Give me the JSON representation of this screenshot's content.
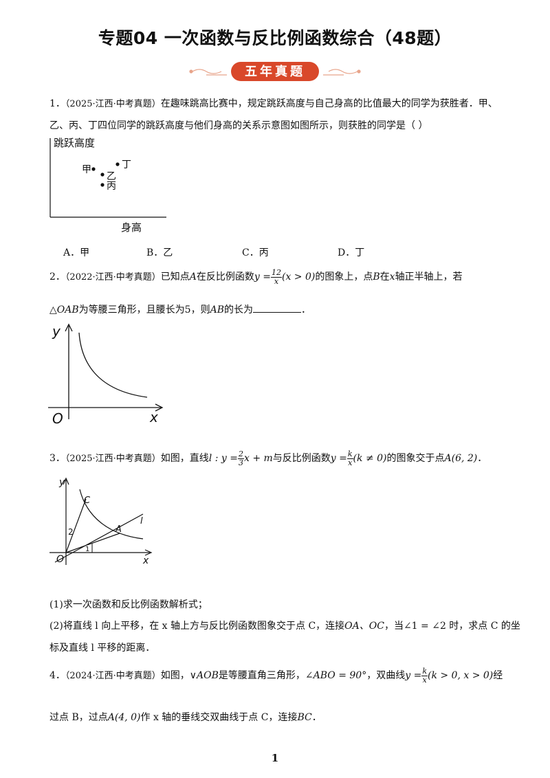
{
  "title": "专题04  一次函数与反比例函数综合（48题）",
  "banner": {
    "label": "五年真题",
    "color": "#d9482a"
  },
  "q1": {
    "num": "1．",
    "source": "（2025·江西·中考真题）",
    "line1": "在趣味跳高比赛中，规定跳跃高度与自己身高的比值最大的同学为获胜者．甲、",
    "line2": "乙、丙、丁四位同学的跳跃高度与他们身高的关系示意图如图所示，则获胜的同学是（    ）",
    "figure": {
      "ylabel": "跳跃高度",
      "xlabel": "身高",
      "points": [
        {
          "label": "甲"
        },
        {
          "label": "乙"
        },
        {
          "label": "丙"
        },
        {
          "label": "丁"
        }
      ]
    },
    "options": [
      "A．甲",
      "B．乙",
      "C．丙",
      "D．丁"
    ]
  },
  "q2": {
    "num": "2．",
    "source": "（2022·江西·中考真题）",
    "t1": "已知点",
    "pA": "A",
    "t2": "在反比例函数",
    "fn_lhs": "y =",
    "fn_num": "12",
    "fn_den": "x",
    "fn_cond": "(x > 0)",
    "t3": "的图象上，点",
    "pB": "B",
    "t4": "在",
    "vx": "x",
    "t5": "轴正半轴上，若",
    "line2a": "△OAB",
    "line2b": "为等腰三角形，且腰长为5，则",
    "line2c": "AB",
    "line2d": "的长为",
    "line2e": "．",
    "figure": {
      "y": "y",
      "x": "x",
      "o": "O"
    }
  },
  "q3": {
    "num": "3．",
    "source": "（2025·江西·中考真题）",
    "t1": "如图，直线",
    "line_eq": "l : y =",
    "line_num": "2",
    "line_den": "3",
    "line_tail": "x + m",
    "t2": "与反比例函数",
    "fn_lhs": "y =",
    "fn_num": "k",
    "fn_den": "x",
    "fn_cond": "(k ≠ 0)",
    "t3": "的图象交于点",
    "pt": "A(6, 2)",
    "t4": "．",
    "figure": {
      "y": "y",
      "x": "x",
      "o": "O",
      "c": "C",
      "a": "A",
      "l": "l",
      "n1": "1",
      "n2": "2"
    },
    "sub1": "(1)求一次函数和反比例函数解析式；",
    "sub2a": "(2)将直线 l 向上平移，在 x 轴上方与反比例函数图象交于点 C，连接",
    "sub2b": "OA、OC",
    "sub2c": "，当∠1 = ∠2 时，求点 C 的坐",
    "sub2d": "标及直线 l 平移的距离．"
  },
  "q4": {
    "num": "4．",
    "source": "（2024·江西·中考真题）",
    "t1": "如图，",
    "tri": "∨AOB",
    "t2": "是等腰直角三角形，",
    "angle": "∠ABO = 90°",
    "t3": "，双曲线",
    "fn_lhs": "y =",
    "fn_num": "k",
    "fn_den": "x",
    "fn_cond": "(k > 0, x > 0)",
    "t4": "经",
    "l2a": "过点 B，过点",
    "l2pt": "A(4, 0)",
    "l2b": "作 x 轴的垂线交双曲线于点 C，连接",
    "l2c": "BC",
    "l2d": "．"
  },
  "page_number": "1"
}
